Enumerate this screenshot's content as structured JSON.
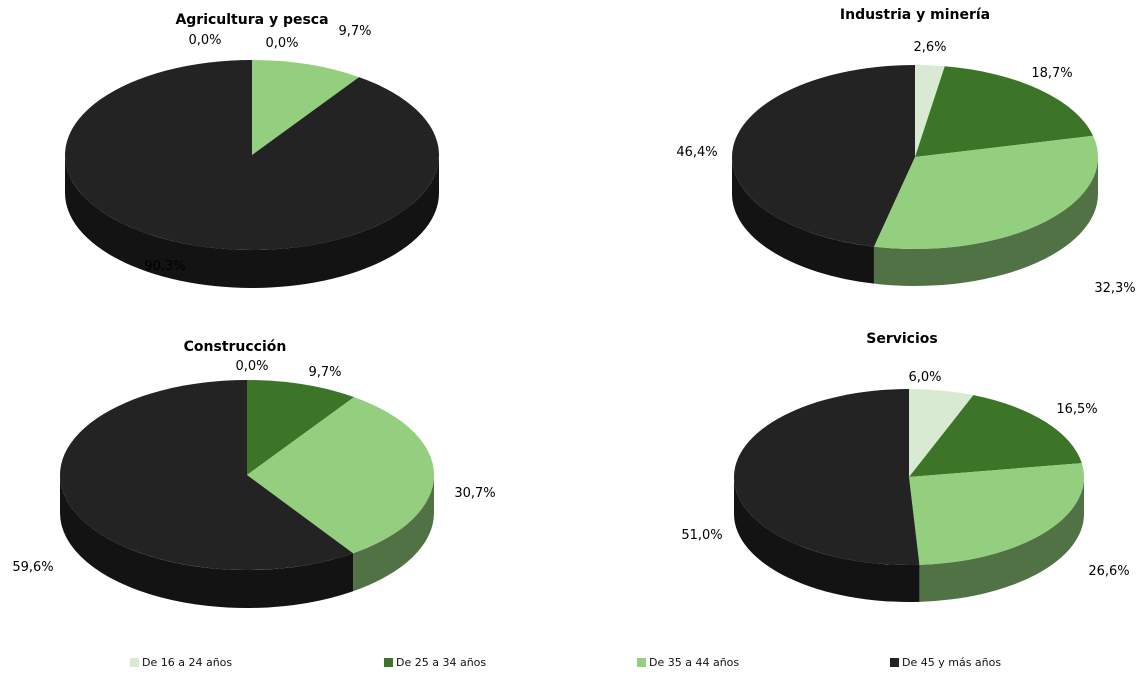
{
  "chart_data": [
    {
      "type": "pie",
      "title": "Agricultura y pesca",
      "categories": [
        "De 16 a 24 años",
        "De 25 a 34 años",
        "De 35 a 44 años",
        "De 45 y más años"
      ],
      "values": [
        0.0,
        0.0,
        9.7,
        90.3
      ],
      "labels": [
        "0,0%",
        "0,0%",
        "9,7%",
        "90,3%"
      ]
    },
    {
      "type": "pie",
      "title": "Industria y minería",
      "categories": [
        "De 16 a 24 años",
        "De 25 a 34 años",
        "De 35 a 44 años",
        "De 45 y más años"
      ],
      "values": [
        2.6,
        18.7,
        32.3,
        46.4
      ],
      "labels": [
        "2,6%",
        "18,7%",
        "32,3%",
        "46,4%"
      ]
    },
    {
      "type": "pie",
      "title": "Construcción",
      "categories": [
        "De 16 a 24 años",
        "De 25 a 34 años",
        "De 35 a 44 años",
        "De 45 y más años"
      ],
      "values": [
        0.0,
        9.7,
        30.7,
        59.6
      ],
      "labels": [
        "0,0%",
        "9,7%",
        "30,7%",
        "59,6%"
      ]
    },
    {
      "type": "pie",
      "title": "Servicios",
      "categories": [
        "De 16 a 24 años",
        "De 25 a 34 años",
        "De 35 a 44 años",
        "De 45 y más años"
      ],
      "values": [
        6.0,
        16.5,
        26.6,
        51.0
      ],
      "labels": [
        "6,0%",
        "16,5%",
        "26,6%",
        "51,0%"
      ]
    }
  ],
  "legend": {
    "placement": "bottom",
    "items": [
      {
        "label": "De 16 a 24 años",
        "color": "#d9ead3"
      },
      {
        "label": "De 25 a 34 años",
        "color": "#3c7527"
      },
      {
        "label": "De 35 a 44 años",
        "color": "#93cf7e"
      },
      {
        "label": "De 45 y más años",
        "color": "#232323"
      }
    ]
  }
}
